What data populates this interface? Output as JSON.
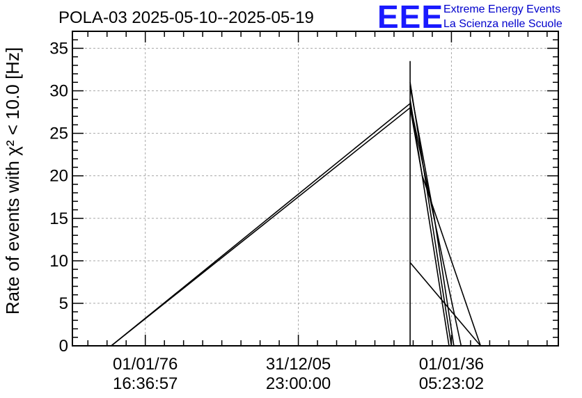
{
  "chart_data": {
    "type": "line",
    "title": "POLA-03 2025-05-10--2025-05-19",
    "ylabel": "Rate of events with χ² < 10.0 [Hz]",
    "xlabel": "",
    "ylim": [
      0,
      37
    ],
    "xlim": [
      0,
      1
    ],
    "grid": true,
    "logo": {
      "mark": "EEE",
      "line1": "Extreme Energy Events",
      "line2": "La Scienza nelle Scuole"
    },
    "y_ticks": [
      0,
      5,
      10,
      15,
      20,
      25,
      30,
      35
    ],
    "x_ticks": [
      {
        "pos": 0.15,
        "date": "01/01/76",
        "time": "16:36:57"
      },
      {
        "pos": 0.465,
        "date": "31/12/05",
        "time": "23:00:00"
      },
      {
        "pos": 0.78,
        "date": "01/01/36",
        "time": "05:23:02"
      }
    ],
    "series": [
      {
        "points": [
          [
            0.08,
            0.0
          ],
          [
            0.695,
            28.0
          ],
          [
            0.72,
            20.0
          ],
          [
            0.84,
            0.0
          ]
        ]
      },
      {
        "points": [
          [
            0.08,
            0.0
          ],
          [
            0.695,
            28.5
          ],
          [
            0.77,
            8.0
          ],
          [
            0.8,
            0.0
          ]
        ]
      },
      {
        "points": [
          [
            0.695,
            30.5
          ],
          [
            0.745,
            15.0
          ],
          [
            0.785,
            0.0
          ]
        ]
      },
      {
        "points": [
          [
            0.695,
            31.0
          ],
          [
            0.78,
            0.0
          ]
        ]
      },
      {
        "points": [
          [
            0.695,
            29.0
          ],
          [
            0.775,
            0.0
          ]
        ]
      },
      {
        "points": [
          [
            0.695,
            33.5
          ],
          [
            0.695,
            0.0
          ]
        ]
      },
      {
        "points": [
          [
            0.695,
            9.8
          ],
          [
            0.84,
            0.0
          ]
        ]
      }
    ]
  }
}
